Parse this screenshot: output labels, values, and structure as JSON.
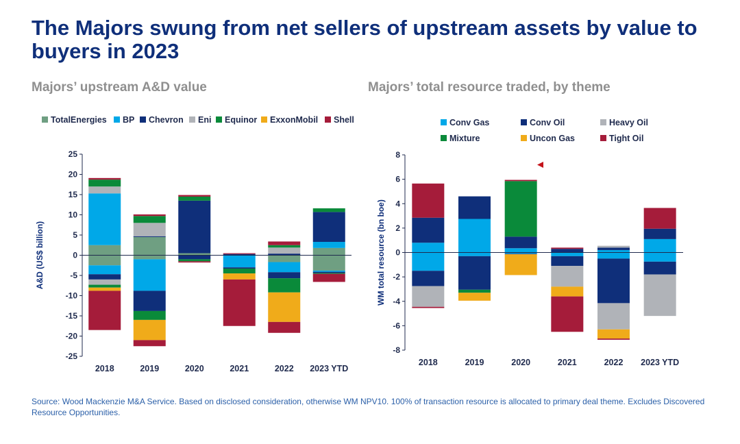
{
  "title": "The Majors swung from net sellers of upstream assets by value to buyers in 2023",
  "source": "Source: Wood Mackenzie M&A Service. Based on disclosed consideration, otherwise WM NPV10. 100% of transaction resource is allocated to primary deal theme. Excludes Discovered Resource Opportunities.",
  "chart_data": [
    {
      "type": "bar",
      "stacked": true,
      "title": "Majors’ upstream A&D value",
      "ylabel": "A&D (US$ billion)",
      "xlabel": "",
      "ylim": [
        -25,
        25
      ],
      "yticks": [
        25,
        20,
        15,
        10,
        5,
        0,
        -5,
        -10,
        -15,
        -20,
        -25
      ],
      "legend_position": "top",
      "categories": [
        "2018",
        "2019",
        "2020",
        "2021",
        "2022",
        "2023 YTD"
      ],
      "series": [
        {
          "name": "TotalEnergies",
          "color": "#6f9f82",
          "pos": [
            2.5,
            4.5,
            0.5,
            0,
            0,
            1.8
          ],
          "neg": [
            -2.5,
            -1,
            0,
            0,
            -1.7,
            -3.8
          ]
        },
        {
          "name": "BP",
          "color": "#00a8e8",
          "pos": [
            12.8,
            0,
            0,
            0,
            0,
            1.5
          ],
          "neg": [
            -2.2,
            -7.8,
            0,
            -3,
            -2.5,
            -0.3
          ]
        },
        {
          "name": "Chevron",
          "color": "#0f2f7a",
          "pos": [
            0,
            0.2,
            13,
            0.3,
            0.4,
            7.4
          ],
          "neg": [
            -1.3,
            -5,
            -1,
            -0.3,
            -1.5,
            -0.3
          ]
        },
        {
          "name": "Eni",
          "color": "#b0b3b8",
          "pos": [
            1.7,
            3.3,
            0,
            0,
            1.5,
            0
          ],
          "neg": [
            -1.3,
            0,
            0,
            0,
            0,
            0
          ]
        },
        {
          "name": "Equinor",
          "color": "#0a8a3a",
          "pos": [
            1.7,
            1.7,
            1,
            0,
            0.6,
            0.9
          ],
          "neg": [
            -0.7,
            -2.2,
            -0.5,
            -1.2,
            -3.5,
            -0.2
          ]
        },
        {
          "name": "ExxonMobil",
          "color": "#f0ab1a",
          "pos": [
            0,
            0,
            0,
            0,
            0,
            0
          ],
          "neg": [
            -0.8,
            -5,
            0,
            -1.5,
            -7.3,
            0
          ]
        },
        {
          "name": "Shell",
          "color": "#a51c3a",
          "pos": [
            0.4,
            0.4,
            0.4,
            0.2,
            0.9,
            0
          ],
          "neg": [
            -9.7,
            -1.5,
            -0.3,
            -11.5,
            -2.7,
            -2
          ]
        }
      ]
    },
    {
      "type": "bar",
      "stacked": true,
      "title": "Majors’ total resource traded, by theme",
      "ylabel": "WM total resource (bn boe)",
      "xlabel": "",
      "ylim": [
        -8,
        8
      ],
      "yticks": [
        8,
        6,
        4,
        2,
        0,
        -2,
        -4,
        -6,
        -8
      ],
      "legend_position": "top",
      "categories": [
        "2018",
        "2019",
        "2020",
        "2021",
        "2022",
        "2023 YTD"
      ],
      "series": [
        {
          "name": "Conv Gas",
          "color": "#00a8e8",
          "pos": [
            0.8,
            2.75,
            0.35,
            0,
            0.2,
            1.1
          ],
          "neg": [
            -1.5,
            -0.3,
            -0.1,
            -0.3,
            -0.5,
            -0.75
          ]
        },
        {
          "name": "Conv Oil",
          "color": "#0f2f7a",
          "pos": [
            2.05,
            1.85,
            0.95,
            0.3,
            0.2,
            0.85
          ],
          "neg": [
            -1.25,
            -2.75,
            -0.05,
            -0.8,
            -3.65,
            -1.05
          ]
        },
        {
          "name": "Heavy Oil",
          "color": "#b0b3b8",
          "pos": [
            0,
            0,
            0,
            0,
            0.15,
            0
          ],
          "neg": [
            -1.7,
            0,
            0,
            -1.7,
            -2.15,
            -3.4
          ]
        },
        {
          "name": "Mixture",
          "color": "#0a8a3a",
          "pos": [
            0,
            0,
            4.55,
            0,
            0,
            0
          ],
          "neg": [
            0,
            -0.25,
            0,
            0,
            0,
            0
          ]
        },
        {
          "name": "Uncon Gas",
          "color": "#f0ab1a",
          "pos": [
            0,
            0,
            0,
            0,
            0,
            0
          ],
          "neg": [
            0,
            -0.65,
            -1.7,
            -0.8,
            -0.75,
            0
          ]
        },
        {
          "name": "Tight Oil",
          "color": "#a51c3a",
          "pos": [
            2.8,
            0,
            0.1,
            0.1,
            0,
            1.7
          ],
          "neg": [
            -0.1,
            0,
            0,
            -2.9,
            -0.1,
            0
          ]
        }
      ]
    }
  ]
}
